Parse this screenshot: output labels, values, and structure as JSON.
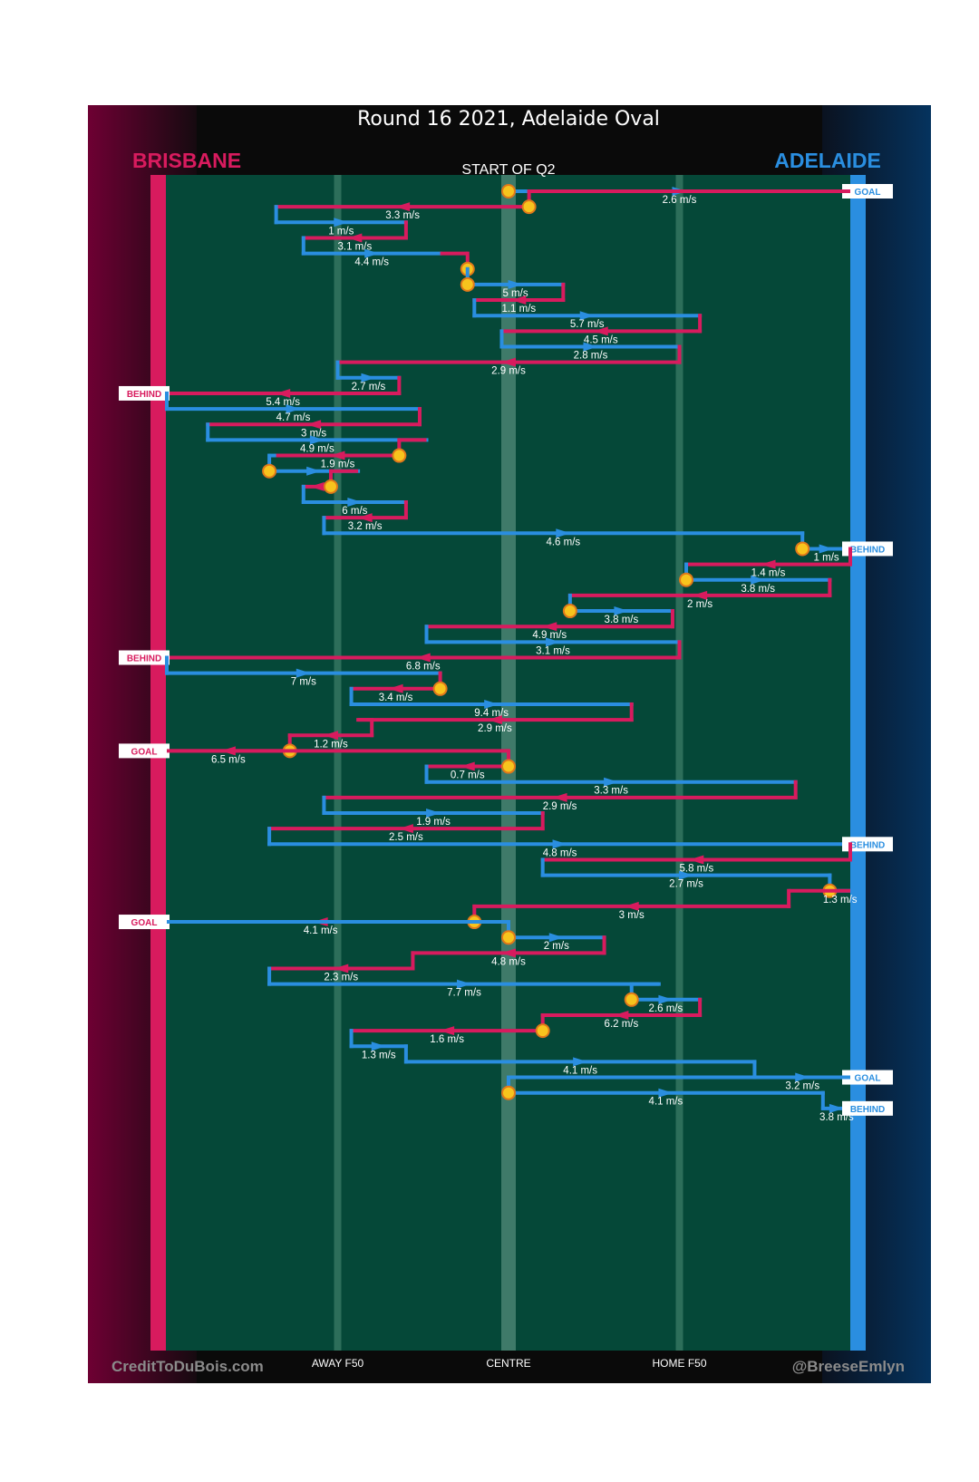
{
  "chart_data": {
    "type": "chain-of-possession",
    "title": "Round 16 2021, Adelaide Oval",
    "subtitle": "START OF Q2",
    "teams": {
      "left": {
        "name": "BRISBANE",
        "color": "#d81b5e"
      },
      "right": {
        "name": "ADELAIDE",
        "color": "#2a8ee0"
      }
    },
    "x_axis": {
      "range": [
        0,
        100
      ],
      "ticks": [
        {
          "label": "AWAY F50",
          "value": 25
        },
        {
          "label": "CENTRE",
          "value": 50
        },
        {
          "label": "HOME F50",
          "value": 75
        }
      ]
    },
    "credit_left": "CreditToDuBois.com",
    "credit_right": "@BreeseEmlyn",
    "chains": [
      {
        "team": "A",
        "start": 50,
        "end": 100,
        "speed": "2.6 m/s",
        "start_marker": true,
        "outcome": "GOAL"
      },
      {
        "team": "B",
        "start": 53,
        "end": 16,
        "speed": "3.3 m/s",
        "start_marker": true
      },
      {
        "team": "A",
        "start": 16,
        "end": 35,
        "speed": "1 m/s"
      },
      {
        "team": "B",
        "start": 35,
        "end": 20,
        "speed": "3.1 m/s"
      },
      {
        "team": "A",
        "start": 20,
        "end": 40,
        "speed": "4.4 m/s"
      },
      {
        "team": "B",
        "start": 44,
        "end": 44,
        "speed": "",
        "start_marker": true
      },
      {
        "team": "A",
        "start": 44,
        "end": 58,
        "speed": "5 m/s",
        "start_marker": true
      },
      {
        "team": "B",
        "start": 58,
        "end": 45,
        "speed": "1.1 m/s"
      },
      {
        "team": "A",
        "start": 45,
        "end": 78,
        "speed": "5.7 m/s"
      },
      {
        "team": "B",
        "start": 78,
        "end": 49,
        "speed": "4.5 m/s"
      },
      {
        "team": "A",
        "start": 49,
        "end": 75,
        "speed": "2.8 m/s"
      },
      {
        "team": "B",
        "start": 75,
        "end": 25,
        "speed": "2.9 m/s"
      },
      {
        "team": "A",
        "start": 25,
        "end": 34,
        "speed": "2.7 m/s"
      },
      {
        "team": "B",
        "start": 34,
        "end": 0,
        "speed": "5.4 m/s",
        "outcome": "BEHIND"
      },
      {
        "team": "A",
        "start": 0,
        "end": 37,
        "speed": "4.7 m/s"
      },
      {
        "team": "B",
        "start": 37,
        "end": 6,
        "speed": "3 m/s"
      },
      {
        "team": "A",
        "start": 6,
        "end": 38,
        "speed": "4.9 m/s"
      },
      {
        "team": "B",
        "start": 34,
        "end": 16,
        "speed": "1.9 m/s",
        "start_marker": true
      },
      {
        "team": "A",
        "start": 15,
        "end": 28,
        "speed": "",
        "start_marker": true
      },
      {
        "team": "B",
        "start": 24,
        "end": 20,
        "speed": "",
        "start_marker": true
      },
      {
        "team": "A",
        "start": 20,
        "end": 35,
        "speed": "6 m/s"
      },
      {
        "team": "B",
        "start": 35,
        "end": 23,
        "speed": "3.2 m/s"
      },
      {
        "team": "A",
        "start": 23,
        "end": 93,
        "speed": "4.6 m/s"
      },
      {
        "team": "A",
        "start": 93,
        "end": 100,
        "speed": "1 m/s",
        "start_marker": true,
        "outcome": "BEHIND"
      },
      {
        "team": "B",
        "start": 100,
        "end": 76,
        "speed": "1.4 m/s"
      },
      {
        "team": "A",
        "start": 76,
        "end": 97,
        "speed": "3.8 m/s",
        "start_marker": true
      },
      {
        "team": "B",
        "start": 97,
        "end": 59,
        "speed": "2 m/s"
      },
      {
        "team": "A",
        "start": 59,
        "end": 74,
        "speed": "3.8 m/s",
        "start_marker": true
      },
      {
        "team": "B",
        "start": 74,
        "end": 38,
        "speed": "4.9 m/s"
      },
      {
        "team": "A",
        "start": 38,
        "end": 75,
        "speed": "3.1 m/s"
      },
      {
        "team": "B",
        "start": 75,
        "end": 0,
        "speed": "6.8 m/s",
        "outcome": "BEHIND"
      },
      {
        "team": "A",
        "start": 0,
        "end": 40,
        "speed": "7 m/s"
      },
      {
        "team": "B",
        "start": 40,
        "end": 27,
        "speed": "3.4 m/s",
        "start_marker": true
      },
      {
        "team": "A",
        "start": 27,
        "end": 68,
        "speed": "9.4 m/s"
      },
      {
        "team": "B",
        "start": 68,
        "end": 28,
        "speed": "2.9 m/s"
      },
      {
        "team": "B",
        "start": 30,
        "end": 18,
        "speed": "1.2 m/s"
      },
      {
        "team": "B",
        "start": 18,
        "end": 0,
        "speed": "6.5 m/s",
        "start_marker": true,
        "outcome": "GOAL"
      },
      {
        "team": "B",
        "start": 50,
        "end": 38,
        "speed": "0.7 m/s",
        "start_marker": true
      },
      {
        "team": "A",
        "start": 38,
        "end": 92,
        "speed": "3.3 m/s"
      },
      {
        "team": "B",
        "start": 92,
        "end": 23,
        "speed": "2.9 m/s"
      },
      {
        "team": "A",
        "start": 23,
        "end": 55,
        "speed": "1.9 m/s"
      },
      {
        "team": "B",
        "start": 55,
        "end": 15,
        "speed": "2.5 m/s"
      },
      {
        "team": "A",
        "start": 15,
        "end": 100,
        "speed": "4.8 m/s",
        "outcome": "BEHIND"
      },
      {
        "team": "B",
        "start": 100,
        "end": 55,
        "speed": "5.8 m/s"
      },
      {
        "team": "A",
        "start": 55,
        "end": 97,
        "speed": "2.7 m/s"
      },
      {
        "team": "A",
        "start": 97,
        "end": 100,
        "speed": "1.3 m/s",
        "start_marker": true
      },
      {
        "team": "B",
        "start": 91,
        "end": 45,
        "speed": "3 m/s"
      },
      {
        "team": "B",
        "start": 45,
        "end": 0,
        "speed": "4.1 m/s",
        "start_marker": true,
        "outcome": "GOAL"
      },
      {
        "team": "A",
        "start": 50,
        "end": 64,
        "speed": "2 m/s",
        "start_marker": true
      },
      {
        "team": "B",
        "start": 64,
        "end": 36,
        "speed": "4.8 m/s"
      },
      {
        "team": "B",
        "start": 36,
        "end": 15,
        "speed": "2.3 m/s"
      },
      {
        "team": "A",
        "start": 15,
        "end": 72,
        "speed": "7.7 m/s"
      },
      {
        "team": "A",
        "start": 68,
        "end": 78,
        "speed": "2.6 m/s",
        "start_marker": true
      },
      {
        "team": "B",
        "start": 78,
        "end": 55,
        "speed": "6.2 m/s"
      },
      {
        "team": "B",
        "start": 55,
        "end": 27,
        "speed": "1.6 m/s",
        "start_marker": true
      },
      {
        "team": "A",
        "start": 27,
        "end": 35,
        "speed": "1.3 m/s"
      },
      {
        "team": "A",
        "start": 35,
        "end": 86,
        "speed": "4.1 m/s"
      },
      {
        "team": "A",
        "start": 86,
        "end": 100,
        "speed": "3.2 m/s",
        "outcome": "GOAL"
      },
      {
        "team": "A",
        "start": 50,
        "end": 96,
        "speed": "4.1 m/s",
        "start_marker": true
      },
      {
        "team": "A",
        "start": 96,
        "end": 100,
        "speed": "3.8 m/s",
        "outcome": "BEHIND"
      }
    ]
  }
}
